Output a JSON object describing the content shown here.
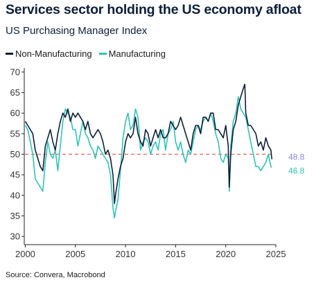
{
  "title": "Services sector holding the US economy afloat",
  "subtitle": "US Purchasing Manager Index",
  "source": "Source: Convera, Macrobond",
  "colors": {
    "non_manufacturing": "#0b1f3a",
    "manufacturing": "#2ec4b6",
    "threshold": "#e07060",
    "label_nm": "#8d86d6",
    "label_m": "#2ec4b6"
  },
  "legend": [
    {
      "name": "Non-Manufacturing",
      "color": "#0b1f3a"
    },
    {
      "name": "Manufacturing",
      "color": "#2ec4b6"
    }
  ],
  "chart_data": {
    "type": "line",
    "title": "Services sector holding the US economy afloat",
    "subtitle": "US Purchasing Manager Index",
    "xlabel": "",
    "ylabel": "",
    "xlim": [
      1999.9,
      2025.0
    ],
    "ylim": [
      28,
      71
    ],
    "x_ticks": [
      2000,
      2005,
      2010,
      2015,
      2020,
      2025
    ],
    "y_ticks": [
      30,
      35,
      40,
      45,
      50,
      55,
      60,
      65,
      70
    ],
    "grid": false,
    "legend_position": "top-left",
    "reference_line": {
      "y": 50,
      "style": "dashed"
    },
    "end_labels": [
      {
        "series": "Non-Manufacturing",
        "text": "48.8",
        "value": 48.8
      },
      {
        "series": "Manufacturing",
        "text": "46.8",
        "value": 46.8
      }
    ],
    "series": [
      {
        "name": "Non-Manufacturing",
        "x": [
          2000.0,
          2000.25,
          2000.5,
          2000.75,
          2001.0,
          2001.25,
          2001.5,
          2001.75,
          2002.0,
          2002.25,
          2002.5,
          2002.75,
          2003.0,
          2003.25,
          2003.5,
          2003.75,
          2004.0,
          2004.25,
          2004.5,
          2004.75,
          2005.0,
          2005.25,
          2005.5,
          2005.75,
          2006.0,
          2006.25,
          2006.5,
          2006.75,
          2007.0,
          2007.25,
          2007.5,
          2007.75,
          2008.0,
          2008.25,
          2008.5,
          2008.75,
          2008.9,
          2009.0,
          2009.25,
          2009.5,
          2009.75,
          2010.0,
          2010.25,
          2010.5,
          2010.75,
          2011.0,
          2011.25,
          2011.5,
          2011.75,
          2012.0,
          2012.25,
          2012.5,
          2012.75,
          2013.0,
          2013.25,
          2013.5,
          2013.75,
          2014.0,
          2014.25,
          2014.5,
          2014.75,
          2015.0,
          2015.25,
          2015.5,
          2015.75,
          2016.0,
          2016.25,
          2016.5,
          2016.75,
          2017.0,
          2017.25,
          2017.5,
          2017.75,
          2018.0,
          2018.25,
          2018.5,
          2018.75,
          2019.0,
          2019.25,
          2019.5,
          2019.75,
          2020.0,
          2020.25,
          2020.35,
          2020.5,
          2020.75,
          2021.0,
          2021.25,
          2021.5,
          2021.75,
          2021.9,
          2022.0,
          2022.25,
          2022.5,
          2022.75,
          2023.0,
          2023.25,
          2023.5,
          2023.75,
          2024.0,
          2024.25,
          2024.5,
          2024.6
        ],
        "values": [
          58,
          57,
          56,
          55,
          51,
          49,
          47,
          46,
          52,
          54,
          56,
          53,
          51,
          55,
          58,
          60,
          59,
          61,
          58,
          60,
          59,
          60,
          59,
          58,
          56,
          58,
          55,
          54,
          55,
          56,
          55,
          53,
          50,
          51,
          49,
          45,
          38,
          40,
          44,
          47,
          49,
          53,
          55,
          54,
          55,
          59,
          55,
          53,
          52,
          56,
          55,
          52,
          54,
          56,
          54,
          56,
          54,
          54,
          55,
          58,
          57,
          56,
          57,
          59,
          57,
          55,
          53,
          51,
          55,
          57,
          57,
          55,
          59,
          59,
          58,
          60,
          60,
          56,
          56,
          55,
          54,
          57,
          52,
          42,
          50,
          56,
          58,
          62,
          64,
          66,
          67,
          60,
          57,
          57,
          56,
          55,
          52,
          53,
          51,
          54,
          52,
          51,
          48.8
        ]
      },
      {
        "name": "Manufacturing",
        "x": [
          2000.0,
          2000.25,
          2000.5,
          2000.75,
          2001.0,
          2001.25,
          2001.5,
          2001.75,
          2002.0,
          2002.25,
          2002.5,
          2002.75,
          2003.0,
          2003.25,
          2003.5,
          2003.75,
          2004.0,
          2004.25,
          2004.5,
          2004.75,
          2005.0,
          2005.25,
          2005.5,
          2005.75,
          2006.0,
          2006.25,
          2006.5,
          2006.75,
          2007.0,
          2007.25,
          2007.5,
          2007.75,
          2008.0,
          2008.25,
          2008.5,
          2008.75,
          2008.9,
          2009.0,
          2009.25,
          2009.5,
          2009.75,
          2010.0,
          2010.25,
          2010.5,
          2010.75,
          2011.0,
          2011.25,
          2011.5,
          2011.75,
          2012.0,
          2012.25,
          2012.5,
          2012.75,
          2013.0,
          2013.25,
          2013.5,
          2013.75,
          2014.0,
          2014.25,
          2014.5,
          2014.75,
          2015.0,
          2015.25,
          2015.5,
          2015.75,
          2016.0,
          2016.25,
          2016.5,
          2016.75,
          2017.0,
          2017.25,
          2017.5,
          2017.75,
          2018.0,
          2018.25,
          2018.5,
          2018.75,
          2019.0,
          2019.25,
          2019.5,
          2019.75,
          2020.0,
          2020.25,
          2020.35,
          2020.5,
          2020.75,
          2021.0,
          2021.25,
          2021.5,
          2021.75,
          2022.0,
          2022.25,
          2022.5,
          2022.75,
          2023.0,
          2023.25,
          2023.5,
          2023.75,
          2024.0,
          2024.25,
          2024.5,
          2024.6
        ],
        "values": [
          57,
          56,
          53,
          50,
          44,
          43,
          42,
          41,
          48,
          53,
          50,
          49,
          51,
          46,
          52,
          58,
          61,
          60,
          59,
          56,
          56,
          52,
          55,
          58,
          55,
          54,
          52,
          51,
          49,
          52,
          51,
          50,
          49,
          48,
          45,
          37,
          34.5,
          36,
          39,
          46,
          54,
          58,
          60,
          56,
          57,
          61,
          59,
          51,
          53,
          54,
          53,
          50,
          52,
          53,
          51,
          55,
          56,
          51,
          55,
          56,
          58,
          53,
          51,
          53,
          50,
          48,
          51,
          50,
          53,
          56,
          57,
          56,
          58,
          59,
          58,
          60,
          58,
          55,
          53,
          49,
          48,
          50,
          49,
          41,
          52,
          58,
          60,
          64,
          61,
          60,
          59,
          56,
          53,
          50,
          47,
          47,
          46,
          47,
          48,
          50,
          47,
          46.8
        ]
      }
    ]
  }
}
